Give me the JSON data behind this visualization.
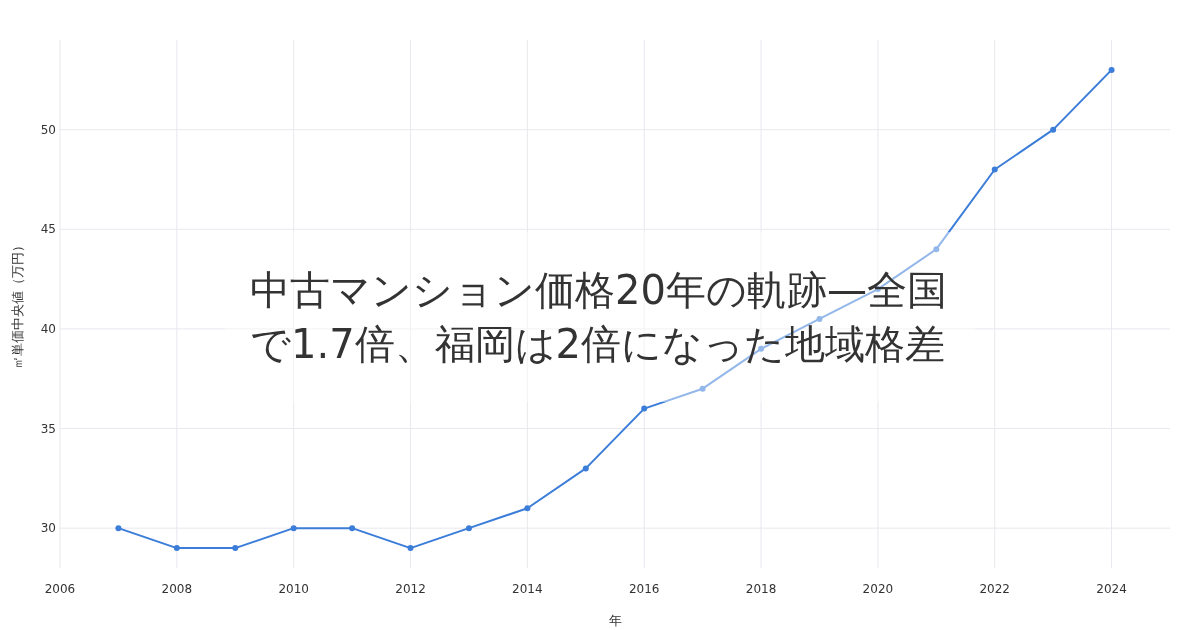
{
  "chart_data": {
    "type": "line",
    "title": "中古マンション価格20年の軌跡—全国で1.7倍、福岡は2倍になった地域格差",
    "xlabel": "年",
    "ylabel": "㎡単価中央値（万円）",
    "x": [
      2007,
      2008,
      2009,
      2010,
      2011,
      2012,
      2013,
      2014,
      2015,
      2016,
      2017,
      2018,
      2019,
      2020,
      2021,
      2022,
      2023,
      2024
    ],
    "series": [
      {
        "color": "#3b7dd8",
        "values": [
          30,
          29,
          29,
          30,
          30,
          29,
          30,
          31,
          33,
          36,
          37,
          39,
          40.5,
          42,
          44,
          48,
          50,
          53
        ]
      }
    ],
    "xlim": [
      2006,
      2025
    ],
    "xticks": [
      2006,
      2008,
      2010,
      2012,
      2014,
      2016,
      2018,
      2020,
      2022,
      2024
    ],
    "ylim": [
      28,
      54.5
    ],
    "yticks": [
      30,
      35,
      40,
      45,
      50
    ],
    "grid": true,
    "marker": "circle",
    "line_style": "solid"
  }
}
